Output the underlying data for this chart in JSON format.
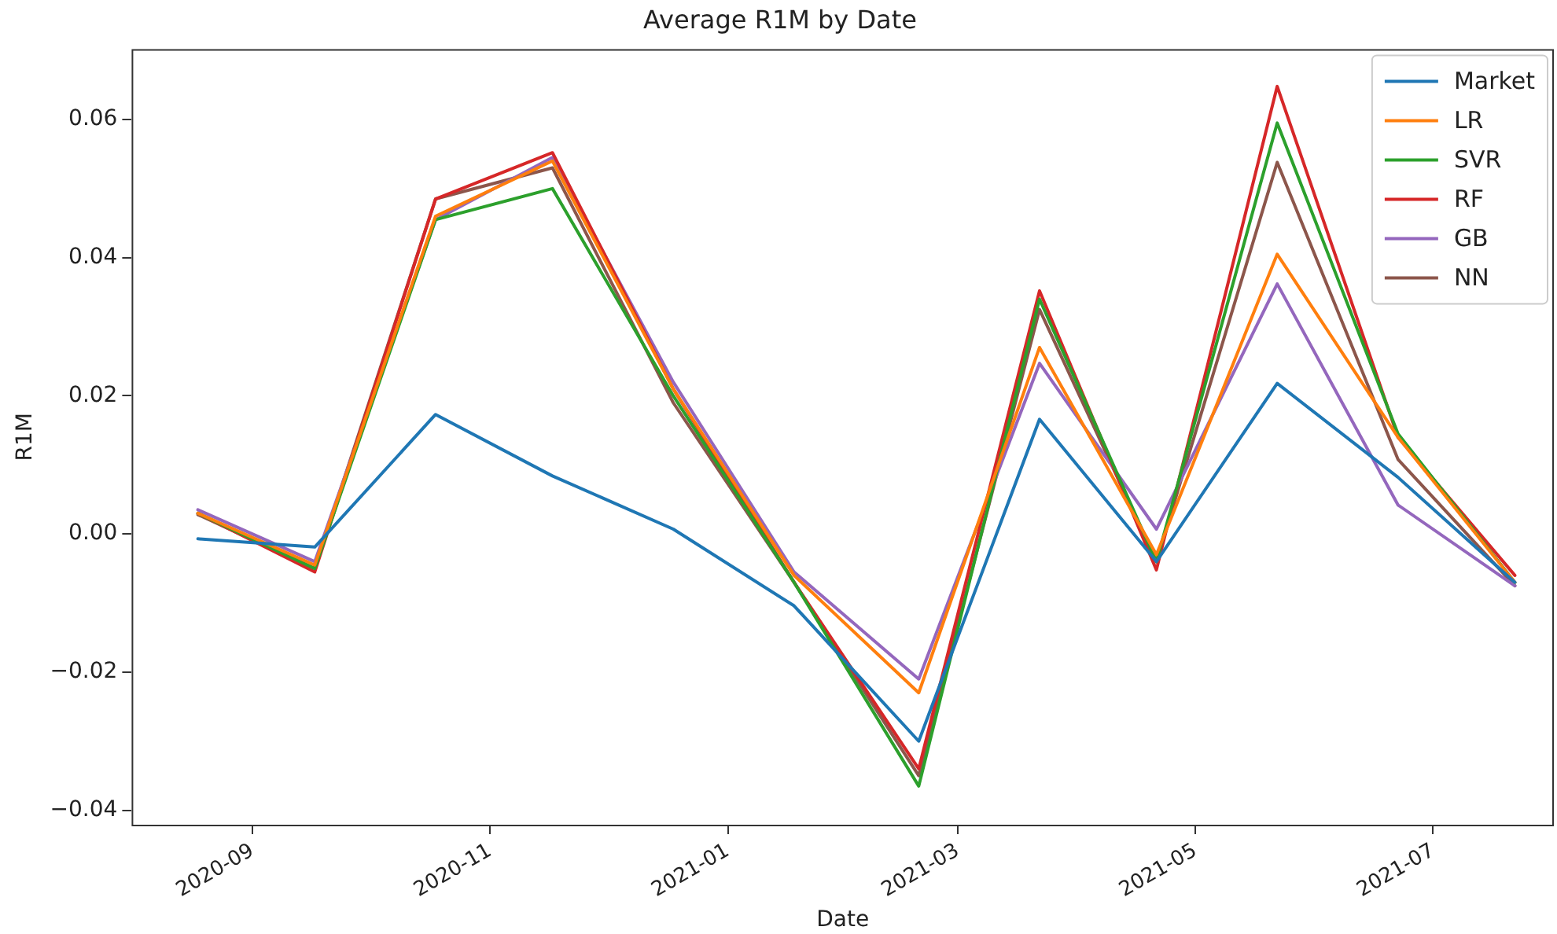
{
  "chart_data": {
    "type": "line",
    "title": "Average R1M by Date",
    "xlabel": "Date",
    "ylabel": "R1M",
    "x": [
      "2020-08-18",
      "2020-09-17",
      "2020-10-18",
      "2020-11-17",
      "2020-12-18",
      "2021-01-18",
      "2021-02-19",
      "2021-03-22",
      "2021-04-21",
      "2021-05-22",
      "2021-06-22",
      "2021-07-22"
    ],
    "series": [
      {
        "name": "Market",
        "color": "#1f77b4",
        "values": [
          -0.0007,
          -0.0019,
          0.0173,
          0.0084,
          0.0007,
          -0.0104,
          -0.03,
          0.0166,
          -0.004,
          0.0218,
          0.0082,
          -0.007
        ]
      },
      {
        "name": "LR",
        "color": "#ff7f0e",
        "values": [
          0.003,
          -0.0045,
          0.046,
          0.054,
          0.021,
          -0.006,
          -0.023,
          0.027,
          -0.003,
          0.0405,
          0.014,
          -0.007
        ]
      },
      {
        "name": "SVR",
        "color": "#2ca02c",
        "values": [
          0.003,
          -0.005,
          0.0455,
          0.05,
          0.02,
          -0.007,
          -0.0365,
          0.034,
          -0.004,
          0.0595,
          0.0145,
          -0.007
        ]
      },
      {
        "name": "RF",
        "color": "#d62728",
        "values": [
          0.003,
          -0.0055,
          0.0485,
          0.0552,
          0.021,
          -0.007,
          -0.034,
          0.0352,
          -0.0052,
          0.0648,
          0.014,
          -0.006
        ]
      },
      {
        "name": "GB",
        "color": "#9467bd",
        "values": [
          0.0035,
          -0.004,
          0.0455,
          0.0545,
          0.022,
          -0.0055,
          -0.021,
          0.0247,
          0.0007,
          0.0362,
          0.0042,
          -0.0075
        ]
      },
      {
        "name": "NN",
        "color": "#8c564b",
        "values": [
          0.0028,
          -0.005,
          0.0485,
          0.053,
          0.019,
          -0.007,
          -0.035,
          0.0325,
          -0.004,
          0.0538,
          0.0108,
          -0.0075
        ]
      }
    ],
    "xlim": [
      "2020-08-01",
      "2021-08-01"
    ],
    "xticks": [
      "2020-09",
      "2020-11",
      "2021-01",
      "2021-03",
      "2021-05",
      "2021-07"
    ],
    "ylim": [
      -0.0421,
      0.0702
    ],
    "yticks": [
      -0.04,
      -0.02,
      {
        "value": 0,
        "label": "0.00"
      },
      0.02,
      0.04,
      0.06
    ],
    "grid": false,
    "legend": "top right",
    "marker": "none",
    "line_style": "solid"
  }
}
